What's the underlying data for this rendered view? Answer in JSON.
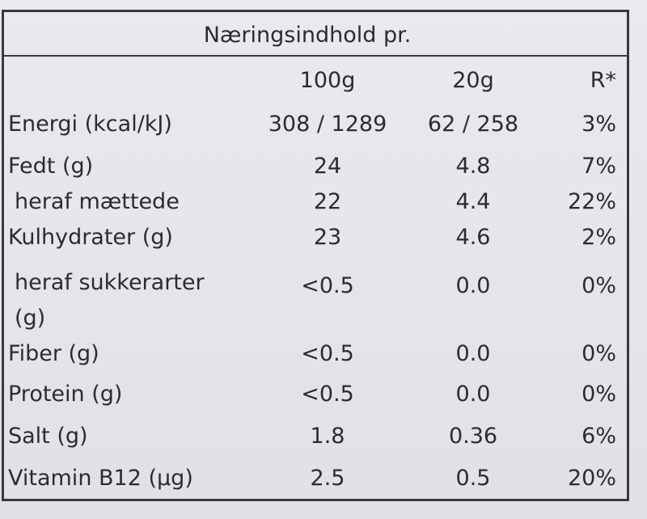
{
  "table": {
    "title": "Næringsindhold pr.",
    "columns": [
      "100g",
      "20g",
      "R*"
    ],
    "rows": [
      [
        "Energi (kcal/kJ)",
        "308 / 1289",
        "62 / 258",
        "3%"
      ],
      [
        "Fedt (g)",
        "24",
        "4.8",
        "7%"
      ],
      [
        "heraf mættede",
        "22",
        "4.4",
        "22%"
      ],
      [
        "Kulhydrater (g)",
        "23",
        "4.6",
        "2%"
      ],
      [
        "heraf sukkerarter (g)",
        "<0.5",
        "0.0",
        "0%"
      ],
      [
        "Fiber (g)",
        "<0.5",
        "0.0",
        "0%"
      ],
      [
        "Protein (g)",
        "<0.5",
        "0.0",
        "0%"
      ],
      [
        "Salt (g)",
        "1.8",
        "0.36",
        "6%"
      ],
      [
        "Vitamin B12 (µg)",
        "2.5",
        "0.5",
        "20%"
      ]
    ]
  }
}
